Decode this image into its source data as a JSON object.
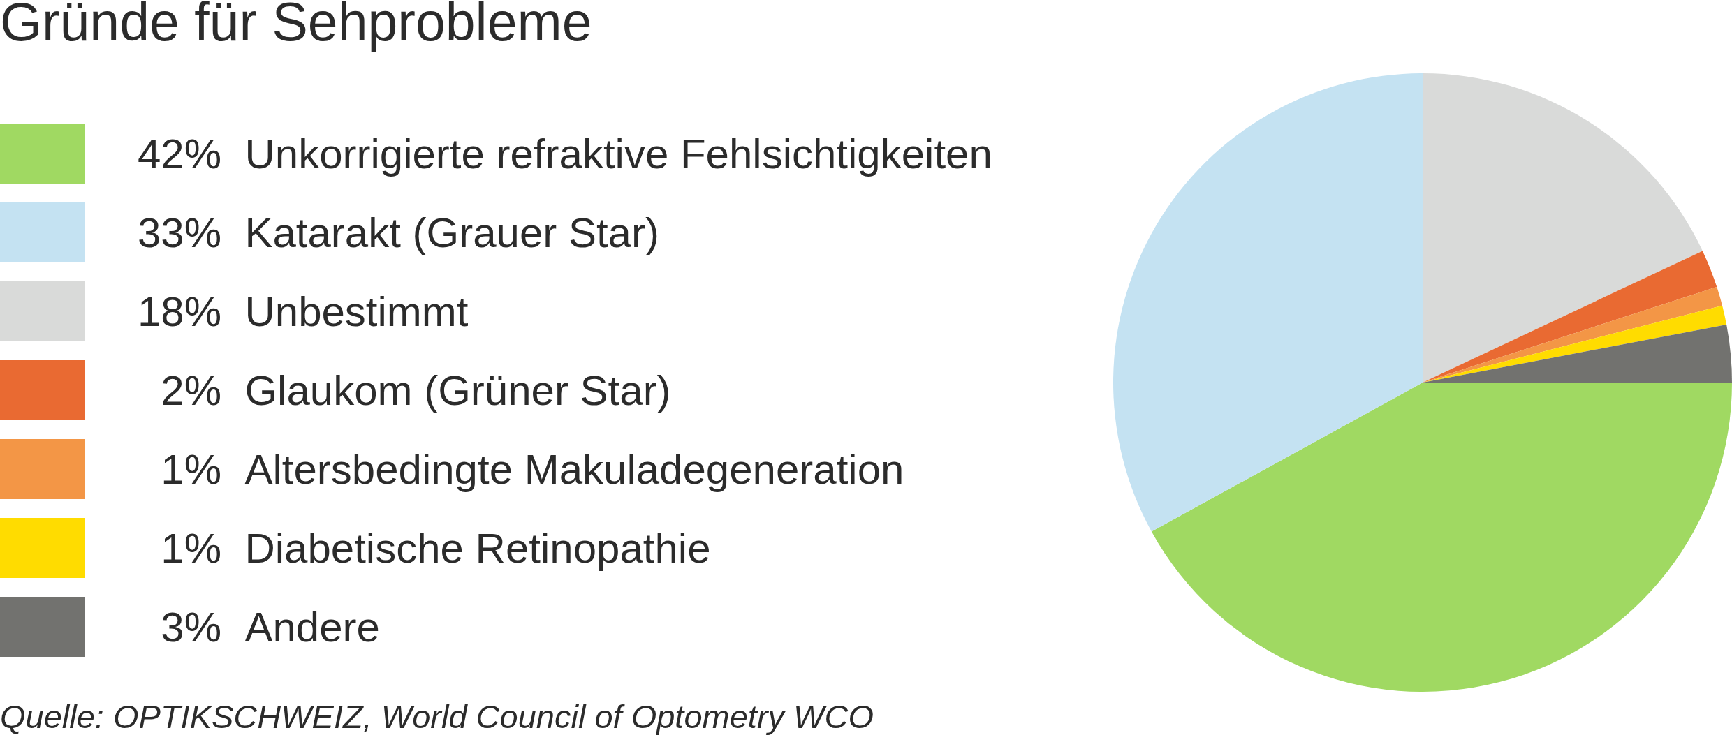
{
  "chart_data": {
    "type": "pie",
    "title": "Gründe für Sehprobleme",
    "categories": [
      "Unkorrigierte refraktive Fehlsichtigkeiten",
      "Katarakt (Grauer Star)",
      "Unbestimmt",
      "Glaukom (Grüner Star)",
      "Altersbedingte Makuladegeneration",
      "Diabetische Retinopathie",
      "Andere"
    ],
    "values": [
      42,
      33,
      18,
      2,
      1,
      1,
      3
    ],
    "value_labels": [
      "42%",
      "33%",
      "18%",
      "2%",
      "1%",
      "1%",
      "3%"
    ],
    "colors": [
      "#a0d962",
      "#c4e2f2",
      "#d9dad9",
      "#e96a32",
      "#f39646",
      "#ffdc00",
      "#72726f"
    ],
    "legend": "left",
    "annotations": [
      "Quelle: OPTIKSCHWEIZ, World Council of Optometry WCO"
    ]
  }
}
